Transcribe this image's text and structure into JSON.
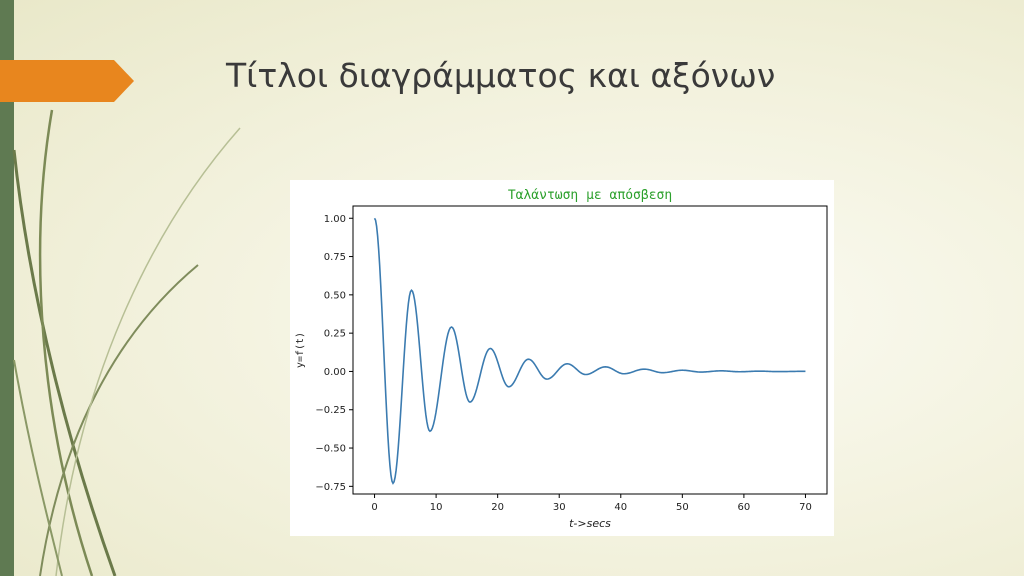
{
  "slide": {
    "title": "Τίτλοι διαγράμματος και αξόνων"
  },
  "colors": {
    "left_bar": "#5f7a52",
    "accent_tab": "#e8861e",
    "line": "#3b7bb0",
    "chart_title": "#2ca02c"
  },
  "chart_data": {
    "type": "line",
    "title": "Ταλάντωση με απόσβεση",
    "xlabel": "t->secs",
    "ylabel": "y=f(t)",
    "xlim": [
      -3.5,
      73.5
    ],
    "ylim": [
      -0.8,
      1.08
    ],
    "xticks": [
      0,
      10,
      20,
      30,
      40,
      50,
      60,
      70
    ],
    "xtick_labels": [
      "0",
      "10",
      "20",
      "30",
      "40",
      "50",
      "60",
      "70"
    ],
    "yticks": [
      1.0,
      0.75,
      0.5,
      0.25,
      0.0,
      -0.25,
      -0.5,
      -0.75
    ],
    "ytick_labels": [
      "1.00",
      "0.75",
      "0.50",
      "0.25",
      "0.00",
      "−0.25",
      "−0.50",
      "−0.75"
    ],
    "grid": false,
    "legend": "none",
    "series": [
      {
        "x": [
          0,
          3,
          6,
          9,
          12.5,
          15.5,
          18.8,
          21.8,
          25,
          28,
          31.3,
          34.3,
          37.5,
          40.5,
          43.8,
          46.8,
          50,
          53,
          56.3,
          59.3,
          62.5,
          65.5,
          70
        ],
        "y": [
          1.0,
          -0.73,
          0.53,
          -0.39,
          0.29,
          -0.2,
          0.15,
          -0.1,
          0.08,
          -0.05,
          0.05,
          -0.02,
          0.03,
          -0.015,
          0.015,
          -0.008,
          0.008,
          -0.004,
          0.004,
          -0.002,
          0.002,
          -0.001,
          0.001
        ]
      }
    ]
  }
}
